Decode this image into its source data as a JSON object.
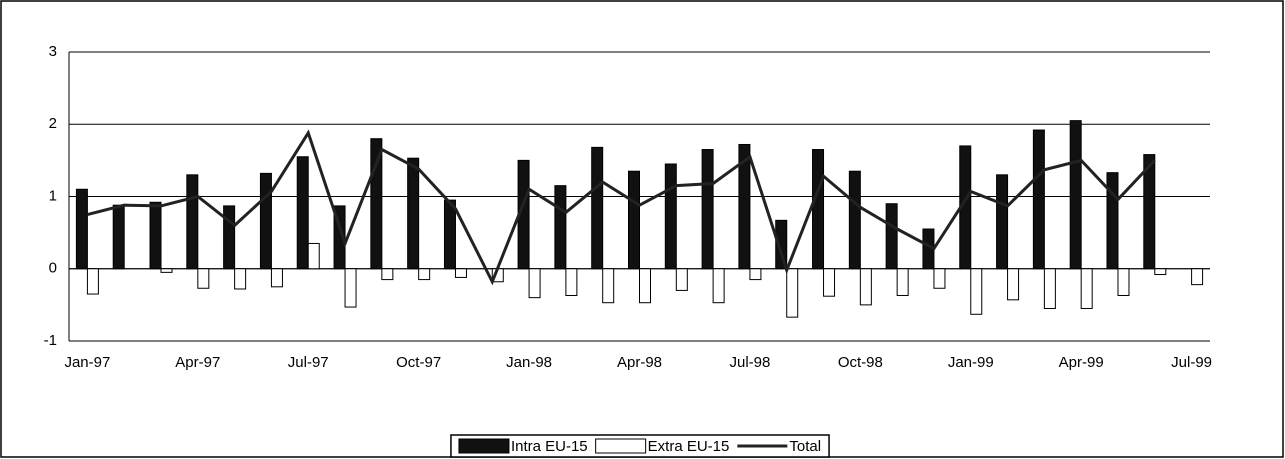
{
  "chart_data": {
    "type": "bar",
    "categories": [
      "Jan-97",
      null,
      null,
      "Apr-97",
      null,
      null,
      "Jul-97",
      null,
      null,
      "Oct-97",
      null,
      null,
      "Jan-98",
      null,
      null,
      "Apr-98",
      null,
      null,
      "Jul-98",
      null,
      null,
      "Oct-98",
      null,
      null,
      "Jan-99",
      null,
      null,
      "Apr-99",
      null,
      null,
      "Jul-99"
    ],
    "series": [
      {
        "name": "Intra EU-15",
        "color": "#111111",
        "kind": "bar",
        "values": [
          1.1,
          0.88,
          0.92,
          1.3,
          0.87,
          1.32,
          1.55,
          0.87,
          1.8,
          1.53,
          0.95,
          0,
          1.5,
          1.15,
          1.68,
          1.35,
          1.45,
          1.65,
          1.72,
          0.67,
          1.65,
          1.35,
          0.9,
          0.55,
          1.7,
          1.3,
          1.92,
          2.05,
          1.33,
          1.58,
          0
        ]
      },
      {
        "name": "Extra EU-15",
        "color": "#ffffff",
        "kind": "bar",
        "values": [
          -0.35,
          0,
          -0.05,
          -0.27,
          -0.28,
          -0.25,
          0.35,
          -0.53,
          -0.15,
          -0.15,
          -0.12,
          -0.18,
          -0.4,
          -0.37,
          -0.47,
          -0.47,
          -0.3,
          -0.47,
          -0.15,
          -0.67,
          -0.38,
          -0.5,
          -0.37,
          -0.27,
          -0.63,
          -0.43,
          -0.55,
          -0.55,
          -0.37,
          -0.08,
          -0.22
        ]
      },
      {
        "name": "Total",
        "color": "#222222",
        "kind": "line",
        "values": [
          0.75,
          0.88,
          0.87,
          1.0,
          0.6,
          1.07,
          1.88,
          0.35,
          1.65,
          1.38,
          0.83,
          -0.18,
          1.1,
          0.78,
          1.2,
          0.88,
          1.15,
          1.18,
          1.55,
          -0.02,
          1.28,
          0.85,
          0.55,
          0.28,
          1.07,
          0.87,
          1.37,
          1.5,
          0.96,
          1.5,
          null
        ]
      }
    ],
    "ylim": [
      -1,
      3
    ],
    "yticks": [
      -1,
      0,
      1,
      2,
      3
    ],
    "grid": true
  }
}
